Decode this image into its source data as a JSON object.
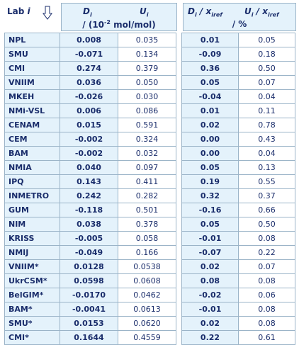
{
  "header": {
    "lab_label": "Lab i",
    "di": "Di",
    "ui": "Ui",
    "unit_abs": "/ (10-2 mol/mol)",
    "rel_d": "Di / xiref",
    "rel_u": "Ui / xiref",
    "unit_rel": "/ %"
  },
  "group1": [
    {
      "lab": "NPL",
      "d": "0.008",
      "u": "0.035",
      "rd": "0.01",
      "ru": "0.05"
    },
    {
      "lab": "SMU",
      "d": "-0.071",
      "u": "0.134",
      "rd": "-0.09",
      "ru": "0.18"
    },
    {
      "lab": "CMI",
      "d": "0.274",
      "u": "0.379",
      "rd": "0.36",
      "ru": "0.50"
    },
    {
      "lab": "VNIIM",
      "d": "0.036",
      "u": "0.050",
      "rd": "0.05",
      "ru": "0.07"
    },
    {
      "lab": "MKEH",
      "d": "-0.026",
      "u": "0.030",
      "rd": "-0.04",
      "ru": "0.04"
    },
    {
      "lab": "NMi-VSL",
      "d": "0.006",
      "u": "0.086",
      "rd": "0.01",
      "ru": "0.11"
    },
    {
      "lab": "CENAM",
      "d": "0.015",
      "u": "0.591",
      "rd": "0.02",
      "ru": "0.78"
    },
    {
      "lab": "CEM",
      "d": "-0.002",
      "u": "0.324",
      "rd": "0.00",
      "ru": "0.43"
    },
    {
      "lab": "BAM",
      "d": "-0.002",
      "u": "0.032",
      "rd": "0.00",
      "ru": "0.04"
    },
    {
      "lab": "NMIA",
      "d": "0.040",
      "u": "0.097",
      "rd": "0.05",
      "ru": "0.13"
    },
    {
      "lab": "IPQ",
      "d": "0.143",
      "u": "0.411",
      "rd": "0.19",
      "ru": "0.55"
    },
    {
      "lab": "INMETRO",
      "d": "0.242",
      "u": "0.282",
      "rd": "0.32",
      "ru": "0.37"
    },
    {
      "lab": "GUM",
      "d": "-0.118",
      "u": "0.501",
      "rd": "-0.16",
      "ru": "0.66"
    },
    {
      "lab": "NIM",
      "d": "0.038",
      "u": "0.378",
      "rd": "0.05",
      "ru": "0.50"
    },
    {
      "lab": "KRISS",
      "d": "-0.005",
      "u": "0.058",
      "rd": "-0.01",
      "ru": "0.08"
    },
    {
      "lab": "NMIJ",
      "d": "-0.049",
      "u": "0.166",
      "rd": "-0.07",
      "ru": "0.22"
    }
  ],
  "group2": [
    {
      "lab": "VNIIM*",
      "d": "0.0128",
      "u": "0.0538",
      "rd": "0.02",
      "ru": "0.07"
    },
    {
      "lab": "UkrCSM*",
      "d": "0.0598",
      "u": "0.0608",
      "rd": "0.08",
      "ru": "0.08"
    },
    {
      "lab": "BelGIM*",
      "d": "-0.0170",
      "u": "0.0462",
      "rd": "-0.02",
      "ru": "0.06"
    },
    {
      "lab": "BAM*",
      "d": "-0.0041",
      "u": "0.0613",
      "rd": "-0.01",
      "ru": "0.08"
    },
    {
      "lab": "SMU*",
      "d": "0.0153",
      "u": "0.0620",
      "rd": "0.02",
      "ru": "0.08"
    },
    {
      "lab": "CMI*",
      "d": "0.1644",
      "u": "0.4559",
      "rd": "0.22",
      "ru": "0.61"
    }
  ]
}
